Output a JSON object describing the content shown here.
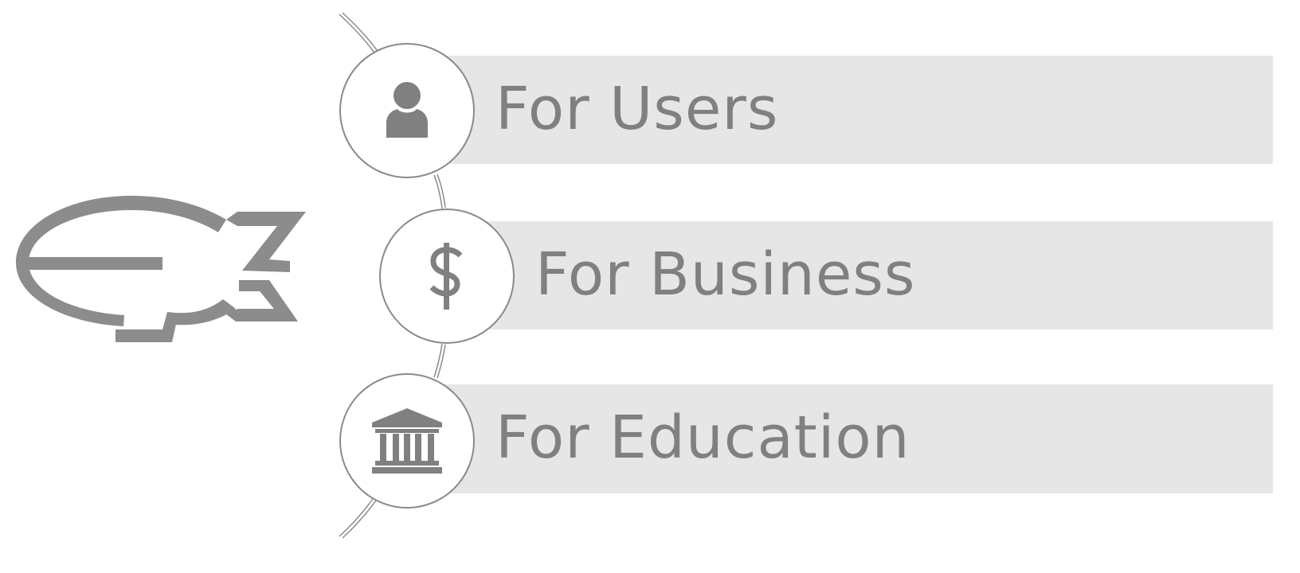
{
  "colors": {
    "band": "#e6e6e6",
    "ink": "#808080",
    "circle_border": "#8a8a8a",
    "background": "#ffffff"
  },
  "items": [
    {
      "label": "For Users",
      "icon": "user-icon"
    },
    {
      "label": "For Business",
      "icon": "dollar-icon"
    },
    {
      "label": "For Education",
      "icon": "institution-icon"
    }
  ],
  "logo": {
    "icon": "airship-logo-icon"
  }
}
